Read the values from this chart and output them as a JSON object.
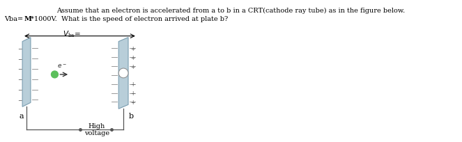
{
  "bg_color": "#ffffff",
  "text_color": "#000000",
  "title_line1": "Assume that an electron is accelerated from a to b in a CRT(cathode ray tube) as in the figure below.",
  "title_line2_pre": "Vba= ",
  "title_line2_bold": "M",
  "title_line2_post": "*1000V.  What is the speed of electron arrived at plate b?",
  "plate_color": "#b8ced9",
  "plate_edge_color": "#7a9db0",
  "wire_color": "#555555",
  "electron_color": "#5bbf5b",
  "minus_color": "#555555",
  "plus_color": "#555555",
  "vba_color": "#000000",
  "fig_width": 6.63,
  "fig_height": 2.05,
  "dpi": 100
}
